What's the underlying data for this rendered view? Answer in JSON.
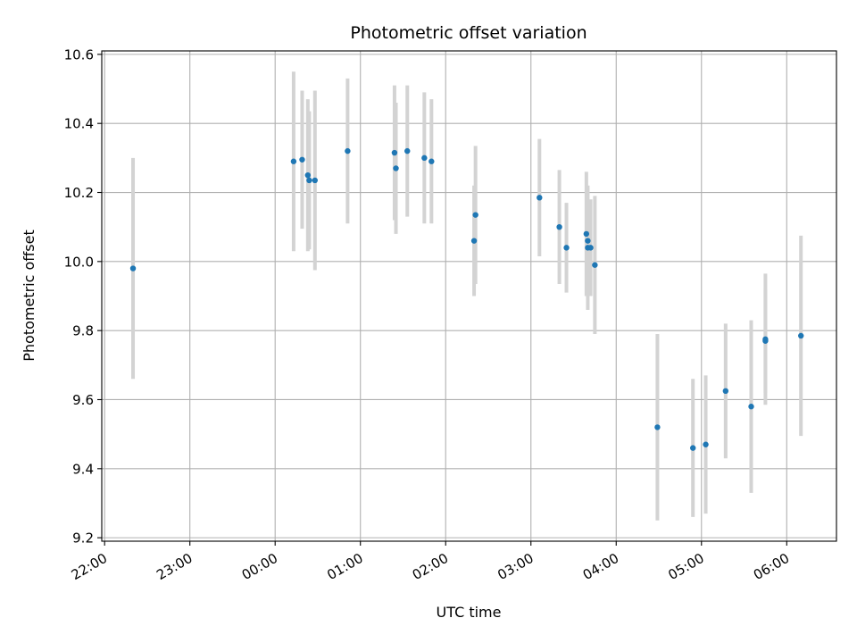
{
  "chart_data": {
    "type": "scatter",
    "title": "Photometric offset variation",
    "xlabel": "UTC time",
    "ylabel": "Photometric offset",
    "x_axis_type": "time",
    "xlim": [
      "21:58",
      "06:35"
    ],
    "ylim": [
      9.19,
      10.61
    ],
    "x_ticks": [
      "22:00",
      "23:00",
      "00:00",
      "01:00",
      "02:00",
      "03:00",
      "04:00",
      "05:00",
      "06:00"
    ],
    "y_ticks": [
      "9.2",
      "9.4",
      "9.6",
      "9.8",
      "10.0",
      "10.2",
      "10.4",
      "10.6"
    ],
    "y_tick_values": [
      9.2,
      9.4,
      9.6,
      9.8,
      10.0,
      10.2,
      10.4,
      10.6
    ],
    "grid": true,
    "marker_color": "#1f77b4",
    "errorbar_color": "#d3d3d3",
    "points": [
      {
        "time": "22:20",
        "y": 9.98,
        "err": 0.32
      },
      {
        "time": "00:13",
        "y": 10.29,
        "err": 0.26
      },
      {
        "time": "00:19",
        "y": 10.295,
        "err": 0.2
      },
      {
        "time": "00:23",
        "y": 10.25,
        "err": 0.22
      },
      {
        "time": "00:24",
        "y": 10.235,
        "err": 0.2
      },
      {
        "time": "00:28",
        "y": 10.235,
        "err": 0.26
      },
      {
        "time": "00:51",
        "y": 10.32,
        "err": 0.21
      },
      {
        "time": "01:24",
        "y": 10.315,
        "err": 0.195
      },
      {
        "time": "01:25",
        "y": 10.27,
        "err": 0.19
      },
      {
        "time": "01:33",
        "y": 10.32,
        "err": 0.19
      },
      {
        "time": "01:45",
        "y": 10.3,
        "err": 0.19
      },
      {
        "time": "01:50",
        "y": 10.29,
        "err": 0.18
      },
      {
        "time": "02:20",
        "y": 10.06,
        "err": 0.16
      },
      {
        "time": "02:21",
        "y": 10.135,
        "err": 0.2
      },
      {
        "time": "03:06",
        "y": 10.185,
        "err": 0.17
      },
      {
        "time": "03:20",
        "y": 10.1,
        "err": 0.165
      },
      {
        "time": "03:25",
        "y": 10.04,
        "err": 0.13
      },
      {
        "time": "03:39",
        "y": 10.08,
        "err": 0.18
      },
      {
        "time": "03:40",
        "y": 10.04,
        "err": 0.18
      },
      {
        "time": "03:40",
        "y": 10.06,
        "err": 0.15
      },
      {
        "time": "03:42",
        "y": 10.04,
        "err": 0.14
      },
      {
        "time": "03:45",
        "y": 9.99,
        "err": 0.2
      },
      {
        "time": "04:29",
        "y": 9.52,
        "err": 0.27
      },
      {
        "time": "04:54",
        "y": 9.46,
        "err": 0.2
      },
      {
        "time": "05:03",
        "y": 9.47,
        "err": 0.2
      },
      {
        "time": "05:17",
        "y": 9.625,
        "err": 0.195
      },
      {
        "time": "05:35",
        "y": 9.58,
        "err": 0.25
      },
      {
        "time": "05:45",
        "y": 9.775,
        "err": 0.19
      },
      {
        "time": "05:45",
        "y": 9.77,
        "err": 0.15
      },
      {
        "time": "06:10",
        "y": 9.785,
        "err": 0.29
      }
    ]
  }
}
